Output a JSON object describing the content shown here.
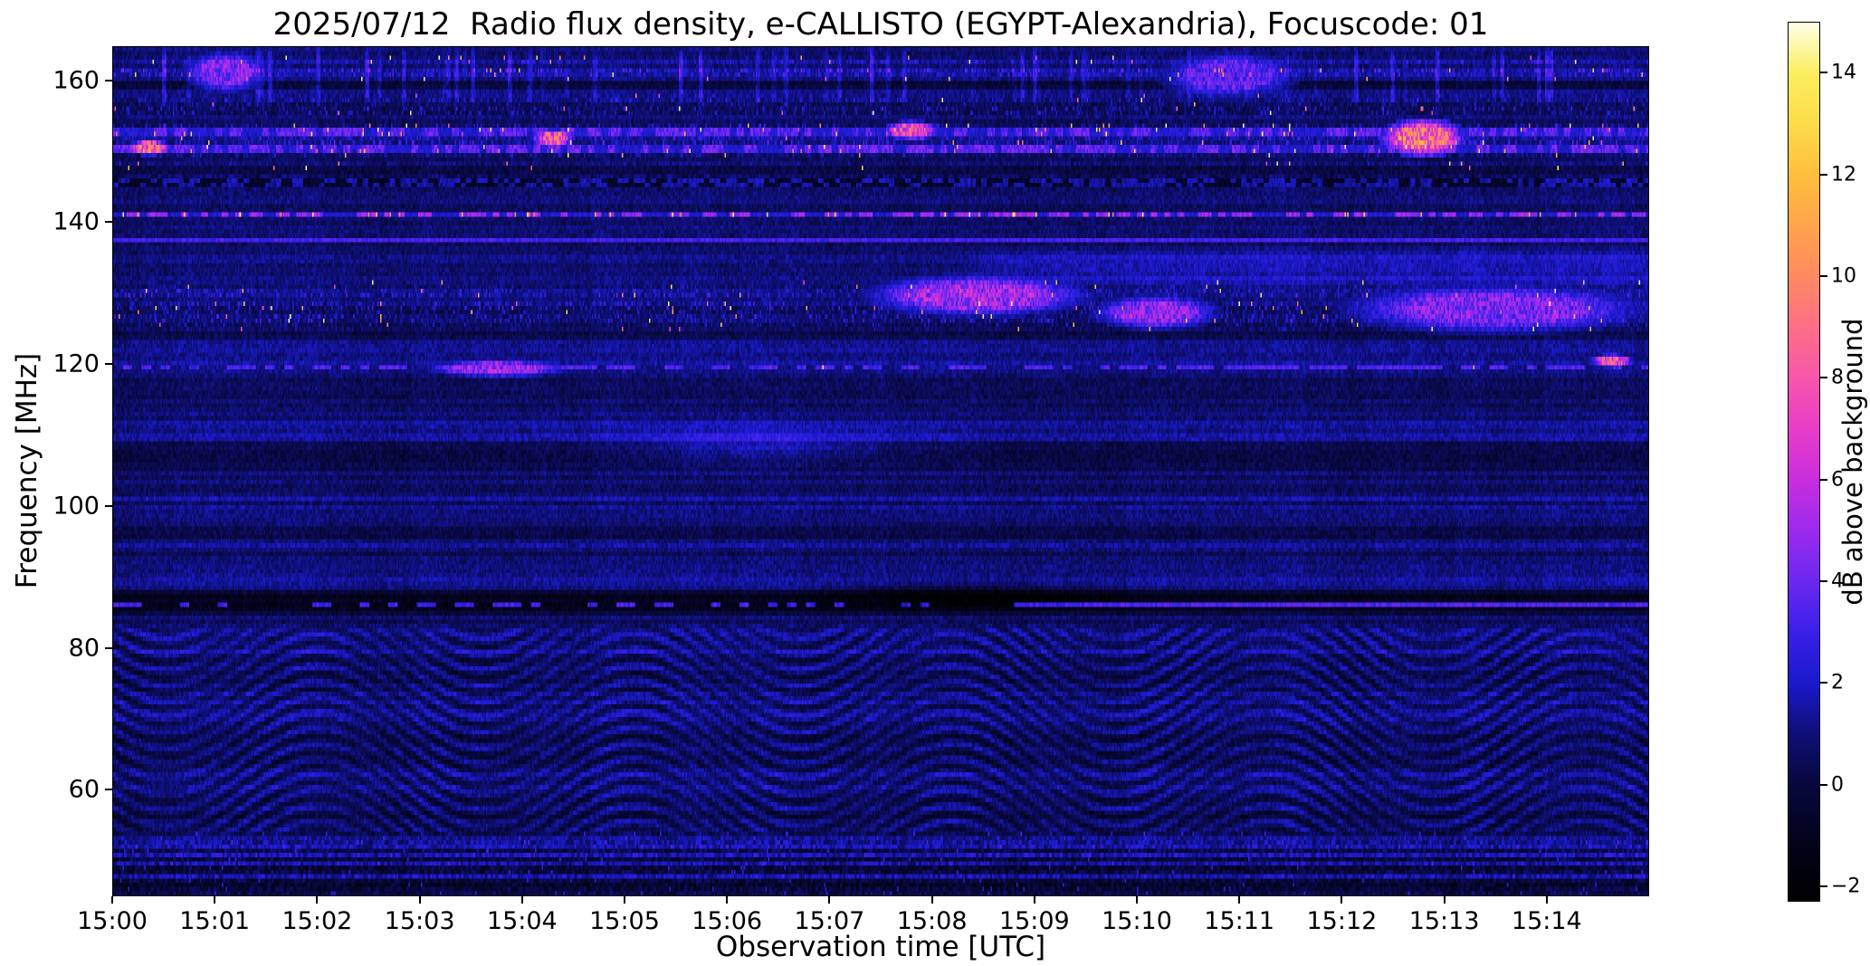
{
  "chart_data": {
    "type": "heatmap",
    "title": "2025/07/12  Radio flux density, e-CALLISTO (EGYPT-Alexandria), Focuscode: 01",
    "date": "2025/07/12",
    "instrument": "e-CALLISTO",
    "station": "EGYPT-Alexandria",
    "focuscode": "01",
    "xlabel": "Observation time [UTC]",
    "ylabel": "Frequency [MHz]",
    "x_ticks": [
      "15:00",
      "15:01",
      "15:02",
      "15:03",
      "15:04",
      "15:05",
      "15:06",
      "15:07",
      "15:08",
      "15:09",
      "15:10",
      "15:11",
      "15:12",
      "15:13",
      "15:14"
    ],
    "x_range_minutes": [
      0,
      15
    ],
    "y_ticks": [
      160,
      140,
      120,
      100,
      80,
      60
    ],
    "y_range_mhz": [
      45,
      164.8
    ],
    "grid": false,
    "legend": "none",
    "colorbar": {
      "label": "dB above background",
      "ticks": [
        14,
        12,
        10,
        8,
        6,
        4,
        2,
        0,
        -2
      ],
      "tick_labels": [
        "14",
        "12",
        "10",
        "8",
        "6",
        "4",
        "2",
        "0",
        "−2"
      ],
      "vmin": -2.3,
      "vmax": 15
    },
    "colormap": {
      "name": "black-blue-violet-magenta-orange-yellow-white",
      "stops": [
        [
          -2.3,
          "#000000"
        ],
        [
          -1.2,
          "#03031a"
        ],
        [
          0,
          "#08083e"
        ],
        [
          1,
          "#0f0f78"
        ],
        [
          2,
          "#1a1acd"
        ],
        [
          3,
          "#3b20e8"
        ],
        [
          4,
          "#6b28ef"
        ],
        [
          5,
          "#9c2bee"
        ],
        [
          6,
          "#c92ede"
        ],
        [
          7,
          "#e83ec8"
        ],
        [
          8,
          "#f757ab"
        ],
        [
          9,
          "#fd6f87"
        ],
        [
          10,
          "#ff8a62"
        ],
        [
          11,
          "#ffa44c"
        ],
        [
          12,
          "#ffbf3c"
        ],
        [
          13,
          "#fddc4a"
        ],
        [
          14,
          "#fbee5e"
        ],
        [
          15,
          "#ffffe8"
        ]
      ]
    },
    "features": {
      "background_db": 0.75,
      "fringes": {
        "period_min": 3.1,
        "swing": 15,
        "spacing_mhz": 2.2,
        "drift": 2.0
      },
      "bands": [
        {
          "f1": 44.5,
          "f2": 53.8,
          "kind": "telemetry",
          "amp": 1.5
        },
        {
          "f1": 53.0,
          "f2": 83.5,
          "kind": "fringes",
          "amp": 1.1
        },
        {
          "f1": 84.2,
          "f2": 88.4,
          "kind": "dark",
          "amp": -1.7
        },
        {
          "f1": 85.4,
          "f2": 86.2,
          "kind": "dashline",
          "level": 2.2,
          "duty": 0.3,
          "sparkle": 0
        },
        {
          "f1": 85.4,
          "f2": 86.2,
          "kind": "intermline",
          "level": 3.4,
          "from": 8.8,
          "to": 15.2
        },
        {
          "f1": 88.4,
          "f2": 90.3,
          "kind": "tint",
          "amp": 0.65
        },
        {
          "f1": 92.7,
          "f2": 95.3,
          "kind": "striperows",
          "amp": 0.85
        },
        {
          "f1": 98.6,
          "f2": 101.4,
          "kind": "striperows",
          "amp": 0.95
        },
        {
          "f1": 103.4,
          "f2": 112.2,
          "kind": "striperows",
          "amp": 0.55
        },
        {
          "f1": 113.0,
          "f2": 118.0,
          "kind": "tint",
          "amp": -0.3
        },
        {
          "f1": 118.9,
          "f2": 120.2,
          "kind": "dashline",
          "level": 2.4,
          "duty": 0.5,
          "sparkle": 0.004
        },
        {
          "f1": 123.7,
          "f2": 124.5,
          "kind": "dark",
          "amp": -1.2
        },
        {
          "f1": 124.6,
          "f2": 131.6,
          "kind": "speckle",
          "level": 1.9,
          "sparkle": 0.01
        },
        {
          "f1": 133.4,
          "f2": 136.2,
          "kind": "tint",
          "amp": 0.45
        },
        {
          "f1": 130.5,
          "f2": 136.6,
          "kind": "tint_late",
          "amp": 0.9,
          "from": 8.2
        },
        {
          "f1": 136.9,
          "f2": 138.3,
          "kind": "line",
          "level": 3.1
        },
        {
          "f1": 140.7,
          "f2": 141.6,
          "kind": "carrier",
          "level": 3.6,
          "sparkle": 0.05
        },
        {
          "f1": 144.7,
          "f2": 146.7,
          "kind": "darkdash",
          "amp": 1.3
        },
        {
          "f1": 147.7,
          "f2": 158.6,
          "kind": "speckle",
          "level": 1.9,
          "sparkle": 0.011
        },
        {
          "f1": 149.9,
          "f2": 151.2,
          "kind": "carrier",
          "level": 2.6,
          "sparkle": 0.018
        },
        {
          "f1": 152.4,
          "f2": 153.3,
          "kind": "carrier",
          "level": 2.4,
          "sparkle": 0.02
        },
        {
          "f1": 156.4,
          "f2": 164.8,
          "kind": "vstreaks",
          "amp": 2.4
        },
        {
          "f1": 158.6,
          "f2": 160.2,
          "kind": "dark",
          "amp": -0.9
        },
        {
          "f1": 160.2,
          "f2": 163.4,
          "kind": "speckle",
          "level": 2.1,
          "sparkle": 0.012
        }
      ],
      "events": [
        {
          "t": 3.75,
          "f": 119.4,
          "dt": 0.5,
          "df": 0.9,
          "level": 7,
          "mode": "burst"
        },
        {
          "t": 12.8,
          "f": 152.0,
          "dt": 0.3,
          "df": 2.0,
          "level": 12,
          "mode": "burst"
        },
        {
          "t": 8.45,
          "f": 129.7,
          "dt": 0.8,
          "df": 2.2,
          "level": 7,
          "mode": "burst"
        },
        {
          "t": 10.2,
          "f": 127.3,
          "dt": 0.45,
          "df": 1.8,
          "level": 6.5,
          "mode": "burst"
        },
        {
          "t": 13.5,
          "f": 127.8,
          "dt": 1.1,
          "df": 2.6,
          "level": 6,
          "mode": "burst"
        },
        {
          "t": 1.1,
          "f": 161.3,
          "dt": 0.3,
          "df": 2.2,
          "level": 6,
          "mode": "burst"
        },
        {
          "t": 10.9,
          "f": 160.8,
          "dt": 0.5,
          "df": 2.5,
          "level": 5,
          "mode": "burst"
        },
        {
          "t": 8.35,
          "f": 87.3,
          "dt": 1.2,
          "df": 1.6,
          "level": -1.6,
          "mode": "soft"
        },
        {
          "t": 6.3,
          "f": 108.6,
          "dt": 1.3,
          "df": 2.6,
          "level": 1.5,
          "mode": "soft"
        },
        {
          "t": 14.65,
          "f": 120.5,
          "dt": 0.15,
          "df": 0.7,
          "level": 10,
          "mode": "burst"
        },
        {
          "t": 0.35,
          "f": 150.6,
          "dt": 0.15,
          "df": 0.8,
          "level": 12,
          "mode": "burst"
        },
        {
          "t": 4.3,
          "f": 151.9,
          "dt": 0.15,
          "df": 0.9,
          "level": 11,
          "mode": "burst"
        },
        {
          "t": 7.8,
          "f": 153.0,
          "dt": 0.2,
          "df": 1.0,
          "level": 10,
          "mode": "burst"
        }
      ]
    }
  }
}
